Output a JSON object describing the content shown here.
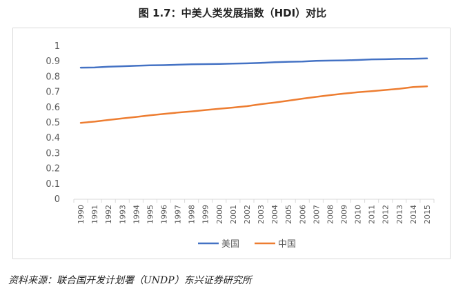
{
  "chart_data": {
    "type": "line",
    "title": "图 1.7：中美人类发展指数（HDI）对比",
    "xlabel": "",
    "ylabel": "",
    "ylim": [
      0,
      1
    ],
    "yticks": [
      "0",
      "0.1",
      "0.2",
      "0.3",
      "0.4",
      "0.5",
      "0.6",
      "0.7",
      "0.8",
      "0.9",
      "1"
    ],
    "x": [
      "1990",
      "1991",
      "1992",
      "1993",
      "1994",
      "1995",
      "1996",
      "1997",
      "1998",
      "1999",
      "2000",
      "2001",
      "2002",
      "2003",
      "2004",
      "2005",
      "2006",
      "2007",
      "2008",
      "2009",
      "2010",
      "2011",
      "2012",
      "2013",
      "2014",
      "2015"
    ],
    "series": [
      {
        "name": "美国",
        "color": "#4472C4",
        "values": [
          0.86,
          0.861,
          0.866,
          0.869,
          0.872,
          0.875,
          0.876,
          0.879,
          0.882,
          0.883,
          0.884,
          0.886,
          0.888,
          0.891,
          0.895,
          0.898,
          0.9,
          0.904,
          0.906,
          0.907,
          0.91,
          0.914,
          0.915,
          0.917,
          0.918,
          0.92
        ]
      },
      {
        "name": "中国",
        "color": "#ED7D31",
        "values": [
          0.499,
          0.507,
          0.518,
          0.528,
          0.538,
          0.548,
          0.557,
          0.566,
          0.574,
          0.583,
          0.591,
          0.599,
          0.608,
          0.621,
          0.632,
          0.644,
          0.657,
          0.669,
          0.68,
          0.69,
          0.699,
          0.706,
          0.714,
          0.722,
          0.733,
          0.738
        ]
      }
    ],
    "legend_position": "bottom",
    "grid": false
  },
  "source_note": "资料来源：联合国开发计划署（UNDP）东兴证券研究所"
}
